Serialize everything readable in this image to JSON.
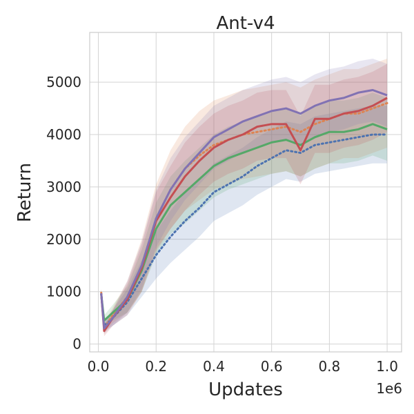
{
  "chart_data": {
    "type": "line",
    "title": "Ant-v4",
    "xlabel": "Updates",
    "ylabel": "Return",
    "x_offset_label": "1e6",
    "xlim": [
      -0.03,
      1.05
    ],
    "ylim": [
      -150,
      5950
    ],
    "x_ticks": [
      0.0,
      0.2,
      0.4,
      0.6,
      0.8,
      1.0
    ],
    "x_tick_labels": [
      "0.0",
      "0.2",
      "0.4",
      "0.6",
      "0.8",
      "1.0"
    ],
    "y_ticks": [
      0,
      1000,
      2000,
      3000,
      4000,
      5000
    ],
    "y_tick_labels": [
      "0",
      "1000",
      "2000",
      "3000",
      "4000",
      "5000"
    ],
    "grid": true,
    "x": [
      0.01,
      0.02,
      0.05,
      0.1,
      0.15,
      0.2,
      0.25,
      0.3,
      0.35,
      0.4,
      0.45,
      0.5,
      0.55,
      0.6,
      0.65,
      0.7,
      0.75,
      0.8,
      0.85,
      0.9,
      0.95,
      1.0
    ],
    "series": [
      {
        "color": "#4c72b0",
        "dash": "dotted",
        "values": [
          950,
          350,
          500,
          800,
          1250,
          1700,
          2050,
          2350,
          2600,
          2900,
          3050,
          3200,
          3400,
          3550,
          3700,
          3650,
          3800,
          3850,
          3900,
          3950,
          4000,
          4000
        ],
        "band_width": [
          80,
          100,
          150,
          250,
          350,
          450,
          500,
          550,
          550,
          550,
          550,
          550,
          550,
          550,
          550,
          550,
          550,
          550,
          550,
          550,
          550,
          550
        ]
      },
      {
        "color": "#dd8452",
        "dash": "dotted",
        "values": [
          980,
          300,
          550,
          900,
          1500,
          2400,
          2950,
          3350,
          3600,
          3800,
          3900,
          4000,
          4050,
          4100,
          4150,
          4050,
          4200,
          4300,
          4400,
          4400,
          4500,
          4600
        ],
        "band_width": [
          80,
          100,
          150,
          300,
          500,
          650,
          750,
          800,
          850,
          850,
          850,
          850,
          850,
          850,
          850,
          850,
          850,
          850,
          850,
          850,
          850,
          850
        ]
      },
      {
        "color": "#55a868",
        "dash": "solid",
        "values": [
          950,
          450,
          600,
          850,
          1400,
          2200,
          2650,
          2900,
          3150,
          3400,
          3550,
          3650,
          3750,
          3850,
          3900,
          3800,
          3950,
          4050,
          4050,
          4100,
          4200,
          4100
        ],
        "band_width": [
          80,
          100,
          150,
          250,
          400,
          500,
          550,
          600,
          600,
          600,
          600,
          600,
          600,
          600,
          600,
          600,
          600,
          600,
          600,
          600,
          600,
          600
        ]
      },
      {
        "color": "#c44e52",
        "dash": "solid",
        "values": [
          960,
          250,
          500,
          850,
          1450,
          2350,
          2800,
          3200,
          3500,
          3750,
          3900,
          4000,
          4150,
          4200,
          4200,
          3700,
          4300,
          4300,
          4400,
          4450,
          4550,
          4700
        ],
        "band_width": [
          80,
          100,
          150,
          300,
          450,
          550,
          600,
          650,
          650,
          650,
          650,
          650,
          650,
          650,
          650,
          650,
          650,
          650,
          650,
          650,
          650,
          650
        ]
      },
      {
        "color": "#8172b3",
        "dash": "solid",
        "values": [
          970,
          300,
          500,
          900,
          1500,
          2400,
          2950,
          3350,
          3650,
          3950,
          4100,
          4250,
          4350,
          4450,
          4500,
          4400,
          4550,
          4650,
          4700,
          4800,
          4850,
          4750
        ],
        "band_width": [
          80,
          100,
          150,
          300,
          450,
          550,
          600,
          600,
          600,
          600,
          600,
          600,
          600,
          600,
          600,
          600,
          600,
          600,
          600,
          600,
          600,
          600
        ]
      }
    ]
  }
}
